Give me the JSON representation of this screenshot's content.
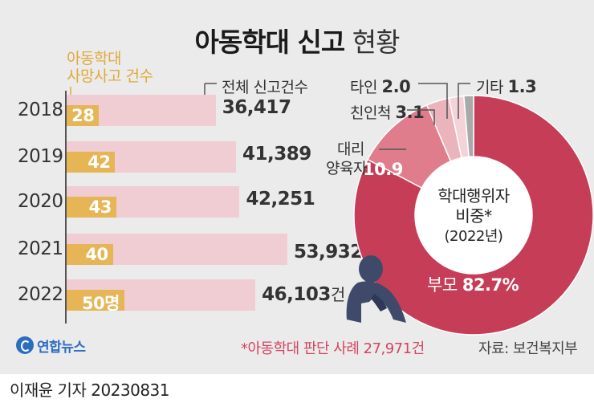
{
  "title_bold": "아동학대 신고",
  "title_light": "현황",
  "chart_data": [
    {
      "type": "bar",
      "categories": [
        "2018",
        "2019",
        "2020",
        "2021",
        "2022"
      ],
      "series": [
        {
          "name": "아동학대 사망사고 건수",
          "values": [
            28,
            42,
            43,
            40,
            50
          ],
          "labels": [
            "28",
            "42",
            "43",
            "40",
            "50명"
          ],
          "color": "#e6b556"
        },
        {
          "name": "전체 신고건수",
          "values": [
            36417,
            41389,
            42251,
            53932,
            46103
          ],
          "labels": [
            "36,417",
            "41,389",
            "42,251",
            "53,932",
            "46,103"
          ],
          "color": "#f0ccd3"
        }
      ],
      "last_unit": "건",
      "legend_death_line1": "아동학대",
      "legend_death_line2": "사망사고 건수",
      "legend_report": "전체 신고건수"
    },
    {
      "type": "pie",
      "title_line1": "학대행위자",
      "title_line2": "비중*",
      "title_line3": "(2022년)",
      "slices": [
        {
          "name": "부모",
          "value": 82.7,
          "color": "#c63d58"
        },
        {
          "name": "대리 양육자",
          "value": 10.9,
          "color": "#e07d8c"
        },
        {
          "name": "친인척",
          "value": 3.1,
          "color": "#ebb4bd"
        },
        {
          "name": "타인",
          "value": 2.0,
          "color": "#f4d3d8"
        },
        {
          "name": "기타",
          "value": 1.3,
          "color": "#a9a9a9"
        }
      ],
      "labels": {
        "parent_name": "부모",
        "parent_value": "82.7%",
        "caregiver_line1": "대리",
        "caregiver_line2": "양육자",
        "caregiver_value": "10.9",
        "relative_name": "친인척",
        "relative_value": "3.1",
        "other_name": "타인",
        "other_value": "2.0",
        "etc_name": "기타",
        "etc_value": "1.3"
      }
    }
  ],
  "footnote": "*아동학대 판단 사례 27,971건",
  "source": "자료: 보건복지부",
  "logo_text": "연합뉴스",
  "byline": "이재윤 기자  20230831",
  "colors": {
    "background": "#ebebeb",
    "accent_gold": "#e6b556",
    "accent_pink": "#f0ccd3",
    "accent_red": "#c63d58"
  }
}
